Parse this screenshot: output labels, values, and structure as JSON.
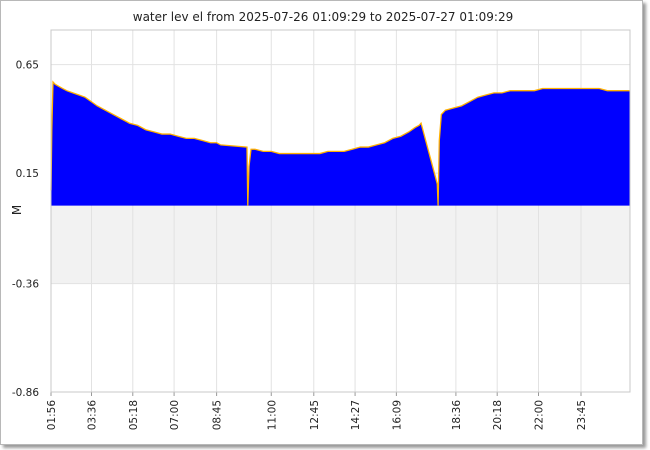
{
  "chart_data": {
    "type": "area",
    "title": "water lev el from 2025-07-26 01:09:29 to 2025-07-27 01:09:29",
    "ylabel": "M",
    "xlabel": "",
    "ylim": [
      -0.86,
      0.81
    ],
    "yticks": [
      0.65,
      0.15,
      -0.36,
      -0.86
    ],
    "ytick_labels": [
      "0.65",
      "0.15",
      "-0.36",
      "-0.86"
    ],
    "xlim_minutes": [
      116,
      1546
    ],
    "xtick_labels": [
      "01:56",
      "03:36",
      "05:18",
      "07:00",
      "08:45",
      "11:00",
      "12:45",
      "14:27",
      "16:09",
      "18:36",
      "20:18",
      "22:00",
      "23:45"
    ],
    "xtick_minutes": [
      116,
      216,
      318,
      420,
      525,
      660,
      765,
      867,
      969,
      1116,
      1218,
      1320,
      1425
    ],
    "shaded_band": [
      -0.36,
      0.0
    ],
    "grid": true,
    "fill_color": "#0000ff",
    "line_color": "#ffb000",
    "band_color": "#f2f2f2",
    "series": [
      {
        "x": [
          116,
          118,
          121,
          126,
          135,
          145,
          155,
          170,
          185,
          200,
          215,
          230,
          250,
          270,
          290,
          310,
          330,
          350,
          370,
          390,
          410,
          430,
          450,
          470,
          490,
          510,
          525,
          535,
          600,
          602,
          605,
          610,
          620,
          640,
          660,
          680,
          700,
          720,
          740,
          760,
          780,
          800,
          820,
          840,
          860,
          880,
          900,
          920,
          940,
          960,
          980,
          1000,
          1015,
          1025,
          1030,
          1070,
          1072,
          1075,
          1080,
          1090,
          1110,
          1130,
          1150,
          1170,
          1190,
          1210,
          1230,
          1250,
          1270,
          1290,
          1310,
          1330,
          1350,
          1370,
          1390,
          1410,
          1430,
          1450,
          1470,
          1490,
          1510,
          1530,
          1546
        ],
        "y": [
          0.07,
          0.35,
          0.57,
          0.56,
          0.55,
          0.54,
          0.53,
          0.52,
          0.51,
          0.5,
          0.48,
          0.46,
          0.44,
          0.42,
          0.4,
          0.38,
          0.37,
          0.35,
          0.34,
          0.33,
          0.33,
          0.32,
          0.31,
          0.31,
          0.3,
          0.29,
          0.29,
          0.28,
          0.27,
          0.0,
          0.18,
          0.26,
          0.26,
          0.25,
          0.25,
          0.24,
          0.24,
          0.24,
          0.24,
          0.24,
          0.24,
          0.25,
          0.25,
          0.25,
          0.26,
          0.27,
          0.27,
          0.28,
          0.29,
          0.31,
          0.32,
          0.34,
          0.36,
          0.37,
          0.38,
          0.1,
          0.0,
          0.3,
          0.42,
          0.44,
          0.45,
          0.46,
          0.48,
          0.5,
          0.51,
          0.52,
          0.52,
          0.53,
          0.53,
          0.53,
          0.53,
          0.54,
          0.54,
          0.54,
          0.54,
          0.54,
          0.54,
          0.54,
          0.54,
          0.53,
          0.53,
          0.53,
          0.53
        ]
      }
    ]
  }
}
